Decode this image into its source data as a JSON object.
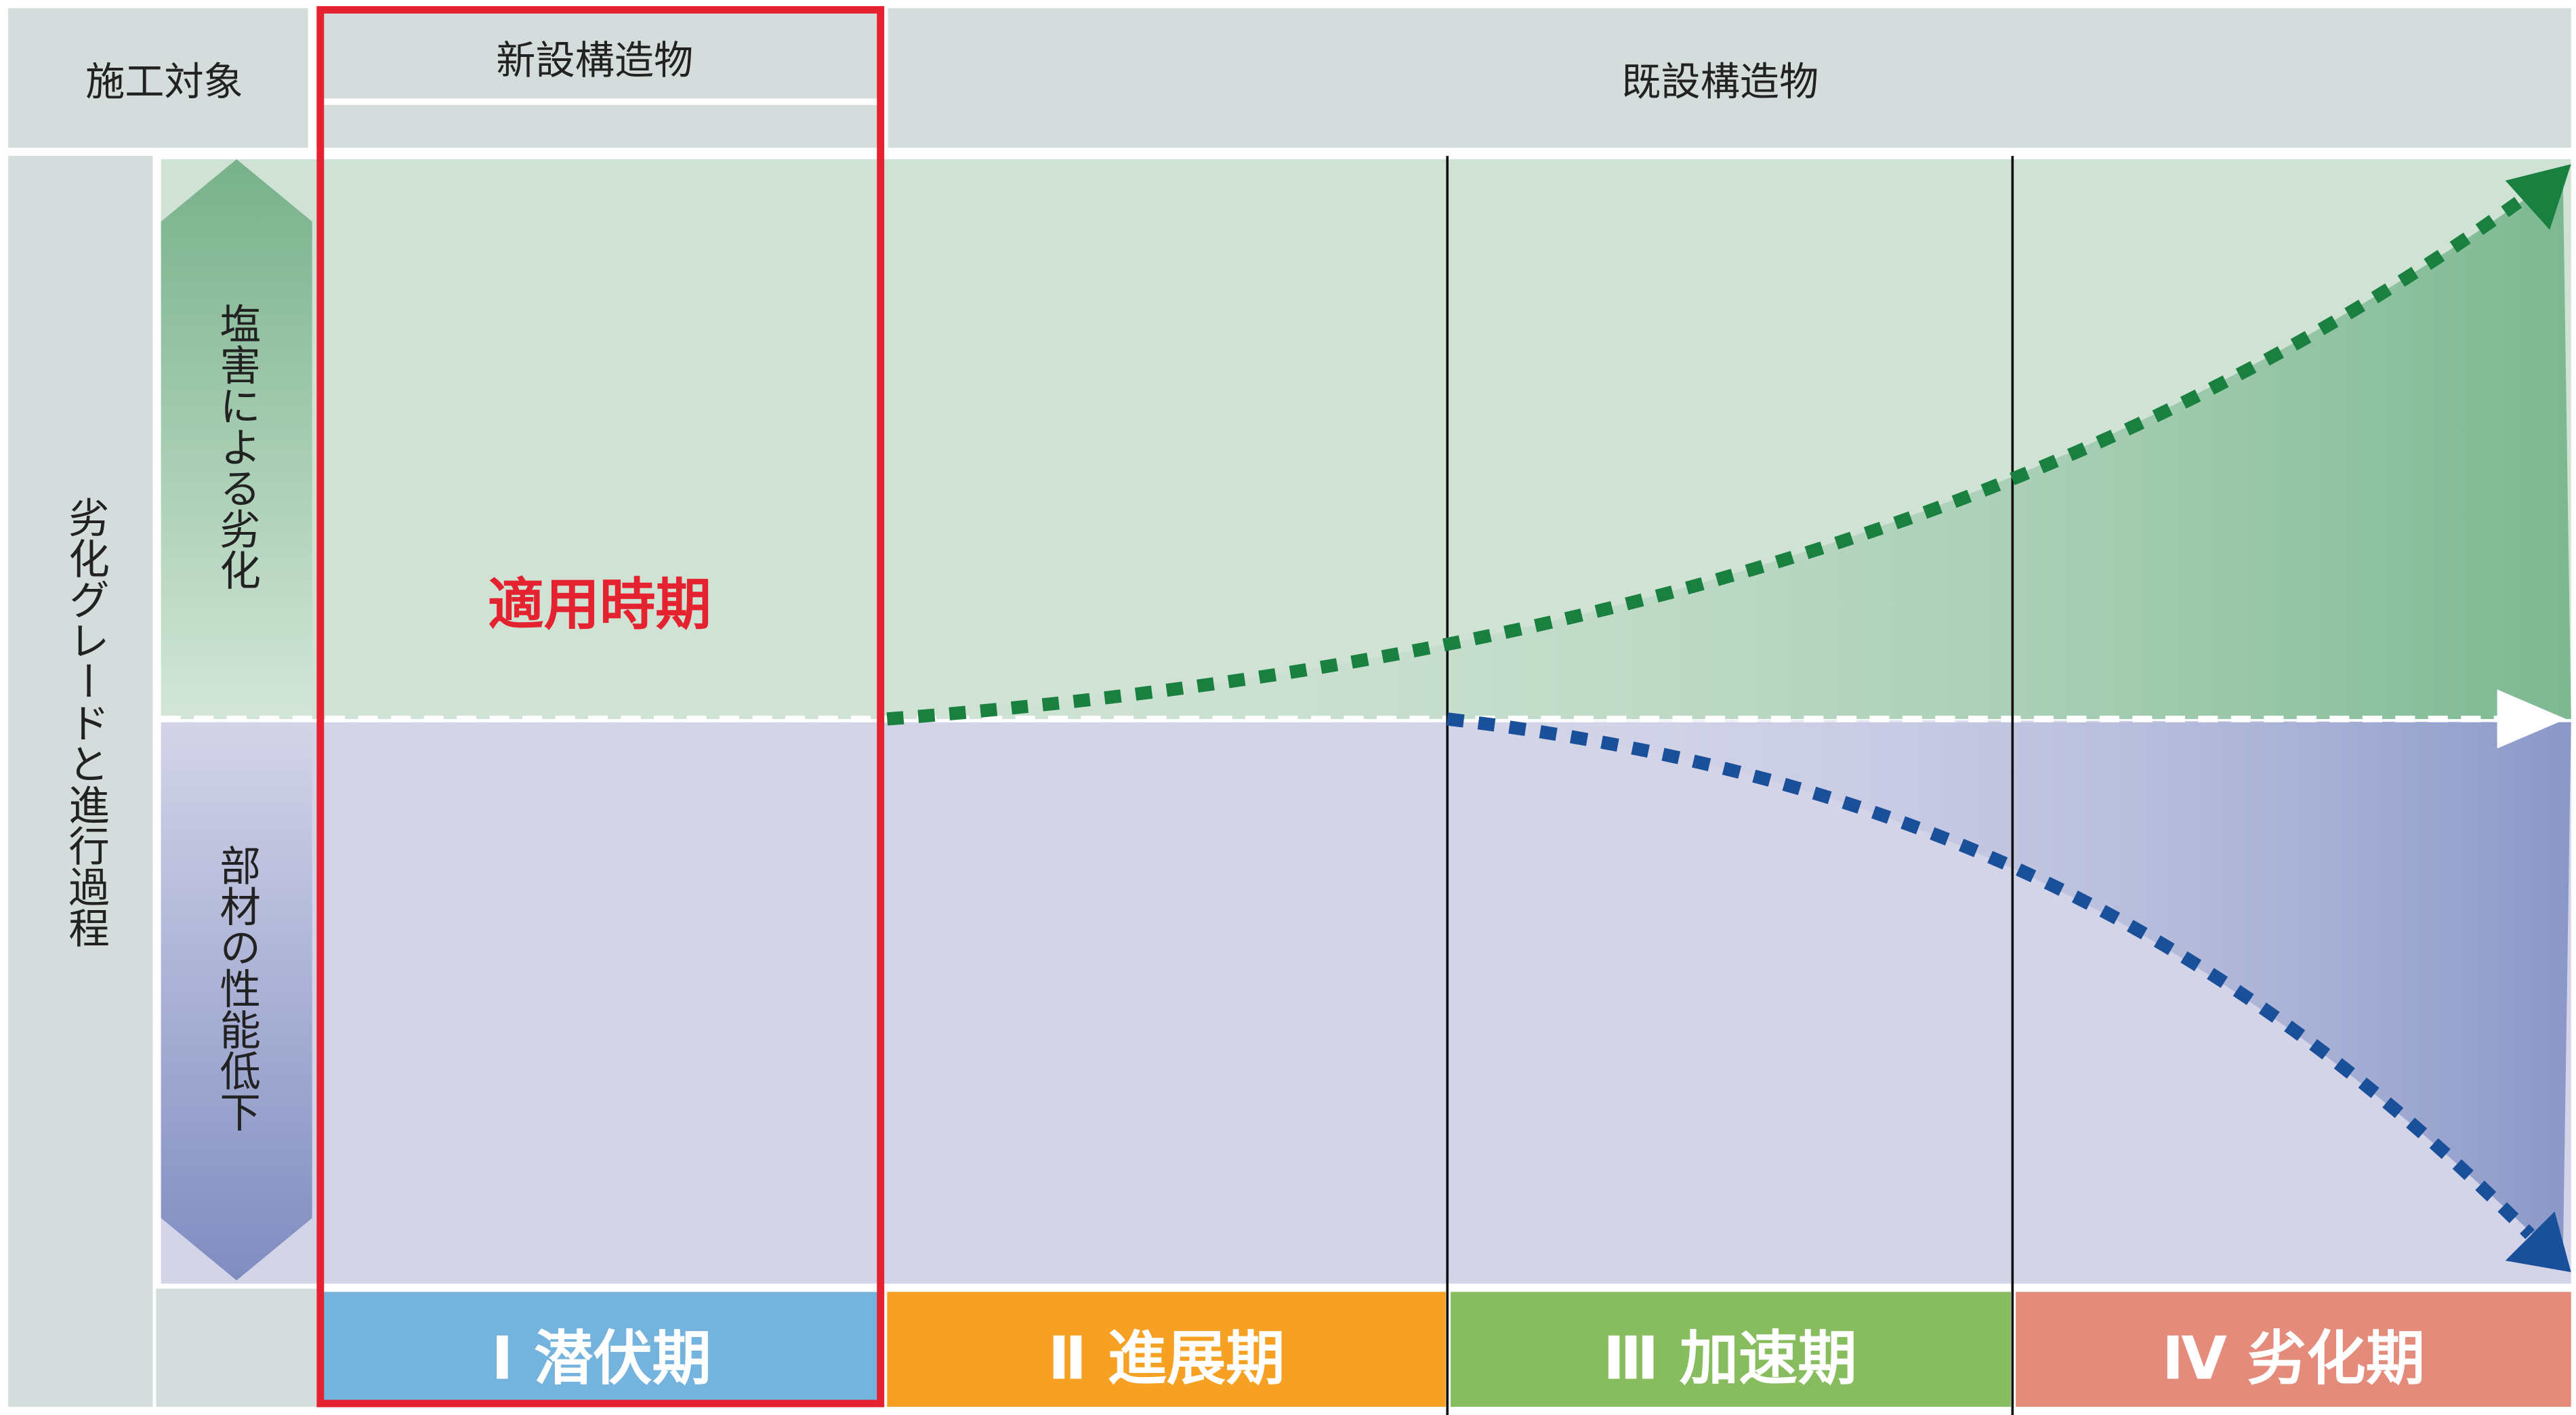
{
  "header": {
    "target_label": "施工対象",
    "new_structures": "新設構造物",
    "existing_structures": "既設構造物"
  },
  "side_label": "劣化グレードと進行過程",
  "axis_arrows": {
    "upper": "塩害による劣化",
    "lower": "部材の性能低下"
  },
  "highlight_label": "適用時期",
  "phases": [
    "Ⅰ 潜伏期",
    "Ⅱ 進展期",
    "Ⅲ 加速期",
    "Ⅳ 劣化期"
  ]
}
